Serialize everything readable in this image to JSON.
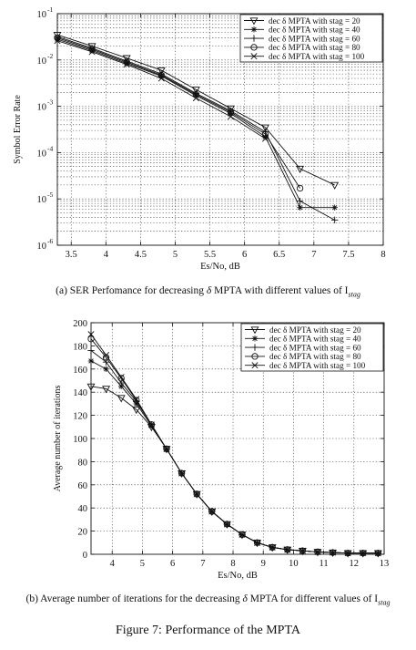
{
  "chart_data": [
    {
      "type": "line",
      "yscale": "log",
      "xlabel": "Es/No, dB",
      "ylabel": "Symbol Error Rate",
      "xlim": [
        3.3,
        8
      ],
      "ylim": [
        1e-06,
        0.1
      ],
      "x_ticks": [
        "3.5",
        "4",
        "4.5",
        "5",
        "5.5",
        "6",
        "6.5",
        "7",
        "7.5",
        "8"
      ],
      "y_ticks": [
        {
          "mant": "10",
          "exp": "-6"
        },
        {
          "mant": "10",
          "exp": "-5"
        },
        {
          "mant": "10",
          "exp": "-4"
        },
        {
          "mant": "10",
          "exp": "-3"
        },
        {
          "mant": "10",
          "exp": "-2"
        },
        {
          "mant": "10",
          "exp": "-1"
        }
      ],
      "grid": true,
      "legend_position": "top-right",
      "series": [
        {
          "name": "dec δ MPTA with stag = 20",
          "marker": "triangle-down",
          "x": [
            3.3,
            3.8,
            4.3,
            4.8,
            5.3,
            5.8,
            6.3,
            6.8,
            7.3
          ],
          "y": [
            0.035,
            0.02,
            0.011,
            0.006,
            0.0023,
            0.0009,
            0.00035,
            4.5e-05,
            2e-05
          ]
        },
        {
          "name": "dec δ MPTA with stag = 40",
          "marker": "star",
          "x": [
            3.3,
            3.8,
            4.3,
            4.8,
            5.3,
            5.8,
            6.3,
            6.8,
            7.3
          ],
          "y": [
            0.028,
            0.016,
            0.0085,
            0.0045,
            0.0017,
            0.0007,
            0.00022,
            6.5e-06,
            6.5e-06
          ]
        },
        {
          "name": "dec δ MPTA with stag = 60",
          "marker": "plus",
          "x": [
            3.3,
            3.8,
            4.3,
            4.8,
            5.3,
            5.8,
            6.3,
            6.8,
            7.3
          ],
          "y": [
            0.032,
            0.018,
            0.0095,
            0.005,
            0.0019,
            0.0008,
            0.00028,
            9e-06,
            3.5e-06
          ]
        },
        {
          "name": "dec δ MPTA with stag = 80",
          "marker": "circle",
          "x": [
            3.3,
            3.8,
            4.3,
            4.8,
            5.3,
            5.8,
            6.3,
            6.8
          ],
          "y": [
            0.03,
            0.017,
            0.009,
            0.0047,
            0.0018,
            0.00075,
            0.00025,
            1.7e-05
          ]
        },
        {
          "name": "dec δ MPTA with stag = 100",
          "marker": "x",
          "x": [
            3.3,
            3.8,
            4.3,
            4.8,
            5.3,
            5.8,
            6.3
          ],
          "y": [
            0.026,
            0.015,
            0.008,
            0.004,
            0.0015,
            0.0006,
            0.0002
          ]
        }
      ]
    },
    {
      "type": "line",
      "yscale": "linear",
      "xlabel": "Es/No, dB",
      "ylabel": "Average number of iterations",
      "xlim": [
        3.3,
        13
      ],
      "ylim": [
        0,
        200
      ],
      "x_ticks": [
        "4",
        "5",
        "6",
        "7",
        "8",
        "9",
        "10",
        "11",
        "12",
        "13"
      ],
      "y_ticks": [
        "0",
        "20",
        "40",
        "60",
        "80",
        "100",
        "120",
        "140",
        "160",
        "180",
        "200"
      ],
      "grid": true,
      "legend_position": "top-right",
      "series": [
        {
          "name": "dec δ MPTA with stag = 20",
          "marker": "triangle-down",
          "x": [
            3.3,
            3.8,
            4.3,
            4.8,
            5.3,
            5.8,
            6.3,
            6.8,
            7.3,
            7.8,
            8.3,
            8.8,
            9.3,
            9.8,
            10.3,
            10.8,
            11.3,
            11.8,
            12.3,
            12.8
          ],
          "y": [
            145,
            143,
            135,
            125,
            110,
            91,
            70,
            52,
            37,
            26,
            17,
            10,
            6,
            4,
            3,
            2,
            1.5,
            1,
            1,
            1
          ]
        },
        {
          "name": "dec δ MPTA with stag = 40",
          "marker": "star",
          "x": [
            3.3,
            3.8,
            4.3,
            4.8,
            5.3,
            5.8,
            6.3,
            6.8,
            7.3,
            7.8,
            8.3,
            8.8,
            9.3,
            9.8,
            10.3,
            10.8,
            11.3,
            11.8,
            12.3,
            12.8
          ],
          "y": [
            167,
            160,
            145,
            130,
            111,
            91,
            70,
            52,
            37,
            26,
            17,
            10,
            6,
            4,
            3,
            2,
            1.5,
            1,
            1,
            1
          ]
        },
        {
          "name": "dec δ MPTA with stag = 60",
          "marker": "plus",
          "x": [
            3.3,
            3.8,
            4.3,
            4.8,
            5.3,
            5.8,
            6.3,
            6.8,
            7.3,
            7.8,
            8.3,
            8.8,
            9.3,
            9.8,
            10.3,
            10.8,
            11.3,
            11.8,
            12.3,
            12.8
          ],
          "y": [
            176,
            166,
            148,
            132,
            112,
            91,
            70,
            52,
            37,
            26,
            17,
            10,
            6,
            4,
            3,
            2,
            1.5,
            1,
            1,
            1
          ]
        },
        {
          "name": "dec δ MPTA with stag = 80",
          "marker": "circle",
          "x": [
            3.3,
            3.8,
            4.3,
            4.8,
            5.3,
            5.8,
            6.3,
            6.8,
            7.3,
            7.8,
            8.3,
            8.8,
            9.3,
            9.8,
            10.3,
            10.8,
            11.3,
            11.8,
            12.3,
            12.8
          ],
          "y": [
            186,
            170,
            152,
            133,
            112,
            91,
            70,
            52,
            37,
            26,
            17,
            10,
            6,
            4,
            3,
            2,
            1.5,
            1,
            1,
            1
          ]
        },
        {
          "name": "dec δ MPTA with stag = 100",
          "marker": "x",
          "x": [
            3.3,
            3.8,
            4.3,
            4.8,
            5.3,
            5.8,
            6.3,
            6.8,
            7.3,
            7.8,
            8.3,
            8.8,
            9.3,
            9.8,
            10.3,
            10.8,
            11.3,
            11.8,
            12.3,
            12.8
          ],
          "y": [
            190,
            172,
            153,
            134,
            112,
            91,
            70,
            52,
            37,
            26,
            17,
            10,
            6,
            4,
            3,
            2,
            1.5,
            1,
            1,
            1
          ]
        }
      ]
    }
  ],
  "captions": {
    "a_prefix": "(a) SER Perfomance for decreasing ",
    "a_delta": "δ",
    "a_mid": " MPTA with different values of I",
    "a_sub": "stag",
    "b_prefix": "(b) Average number of iterations for the decreasing ",
    "b_delta": "δ",
    "b_mid": " MPTA for different values of I",
    "b_sub": "stag",
    "figure": "Figure 7: Performance of the MPTA"
  }
}
